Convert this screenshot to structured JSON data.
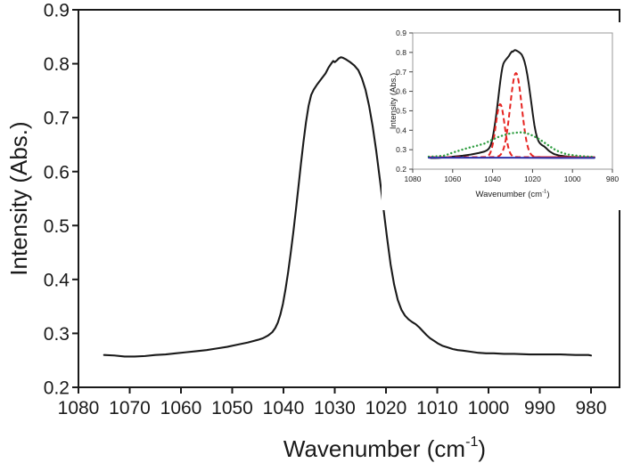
{
  "figure": {
    "background": "#ffffff",
    "description": "FTIR absorbance spectrum with peak-deconvolution inset"
  },
  "colors": {
    "spectrum": "#1a1a1a",
    "component_red": "#e62320",
    "component_green": "#2f9e41",
    "baseline_blue": "#2d2fa8",
    "axis": "#1a1a1a",
    "inset_frame": "#999999",
    "inset_axis": "#444444"
  },
  "chart_data": [
    {
      "id": "main",
      "type": "line",
      "title": "",
      "ylabel": "Intensity (Abs.)",
      "xlabel_prefix": "Wavenumber (cm",
      "xlabel_sup": "-1",
      "xlabel_suffix": ")",
      "x_reversed": true,
      "xlim": [
        1080,
        974.4
      ],
      "ylim": [
        0.2,
        0.9
      ],
      "x_ticks": [
        1080,
        1070,
        1060,
        1050,
        1040,
        1030,
        1020,
        1010,
        1000,
        990,
        980
      ],
      "y_ticks": [
        0.9,
        0.8,
        0.7,
        0.6,
        0.5,
        0.4,
        0.3,
        0.2
      ],
      "grid": false,
      "legend": "none",
      "series": [
        {
          "name": "measured-spectrum",
          "style": "solid",
          "color_key": "spectrum",
          "points": [
            [
              1075,
              0.26
            ],
            [
              1073,
              0.259
            ],
            [
              1071,
              0.257
            ],
            [
              1069,
              0.257
            ],
            [
              1067,
              0.258
            ],
            [
              1065,
              0.26
            ],
            [
              1063,
              0.261
            ],
            [
              1061,
              0.263
            ],
            [
              1059,
              0.265
            ],
            [
              1057,
              0.267
            ],
            [
              1055,
              0.269
            ],
            [
              1053,
              0.272
            ],
            [
              1051,
              0.275
            ],
            [
              1049,
              0.279
            ],
            [
              1047,
              0.283
            ],
            [
              1045,
              0.288
            ],
            [
              1044,
              0.291
            ],
            [
              1043,
              0.296
            ],
            [
              1042.2,
              0.302
            ],
            [
              1041.6,
              0.31
            ],
            [
              1041.1,
              0.32
            ],
            [
              1040.6,
              0.335
            ],
            [
              1040.1,
              0.355
            ],
            [
              1039.6,
              0.382
            ],
            [
              1039.1,
              0.413
            ],
            [
              1038.6,
              0.448
            ],
            [
              1038.1,
              0.486
            ],
            [
              1037.6,
              0.527
            ],
            [
              1037.1,
              0.57
            ],
            [
              1036.6,
              0.614
            ],
            [
              1036.1,
              0.655
            ],
            [
              1035.6,
              0.692
            ],
            [
              1035.1,
              0.722
            ],
            [
              1034.6,
              0.742
            ],
            [
              1034.1,
              0.752
            ],
            [
              1033.4,
              0.762
            ],
            [
              1032.6,
              0.772
            ],
            [
              1031.8,
              0.782
            ],
            [
              1031.2,
              0.793
            ],
            [
              1030.7,
              0.8
            ],
            [
              1030.3,
              0.805
            ],
            [
              1030.0,
              0.803
            ],
            [
              1029.6,
              0.806
            ],
            [
              1029.2,
              0.81
            ],
            [
              1028.8,
              0.812
            ],
            [
              1028.4,
              0.811
            ],
            [
              1027.8,
              0.808
            ],
            [
              1027.0,
              0.803
            ],
            [
              1026.2,
              0.797
            ],
            [
              1025.4,
              0.788
            ],
            [
              1024.7,
              0.773
            ],
            [
              1024.0,
              0.752
            ],
            [
              1023.3,
              0.722
            ],
            [
              1022.6,
              0.684
            ],
            [
              1021.9,
              0.638
            ],
            [
              1021.2,
              0.586
            ],
            [
              1020.5,
              0.532
            ],
            [
              1019.8,
              0.478
            ],
            [
              1019.1,
              0.428
            ],
            [
              1018.4,
              0.39
            ],
            [
              1017.7,
              0.362
            ],
            [
              1017.0,
              0.344
            ],
            [
              1016.3,
              0.333
            ],
            [
              1015.6,
              0.326
            ],
            [
              1014.9,
              0.321
            ],
            [
              1014.2,
              0.317
            ],
            [
              1013.5,
              0.311
            ],
            [
              1012.8,
              0.304
            ],
            [
              1012.1,
              0.297
            ],
            [
              1011.4,
              0.291
            ],
            [
              1010.6,
              0.286
            ],
            [
              1009.8,
              0.281
            ],
            [
              1009.0,
              0.277
            ],
            [
              1008.0,
              0.274
            ],
            [
              1007.0,
              0.271
            ],
            [
              1006.0,
              0.269
            ],
            [
              1005.0,
              0.268
            ],
            [
              1003.5,
              0.266
            ],
            [
              1002.0,
              0.264
            ],
            [
              1000.5,
              0.263
            ],
            [
              999.0,
              0.263
            ],
            [
              997.0,
              0.262
            ],
            [
              995.0,
              0.262
            ],
            [
              992.0,
              0.261
            ],
            [
              989.0,
              0.261
            ],
            [
              986.0,
              0.261
            ],
            [
              983.0,
              0.26
            ],
            [
              980.5,
              0.26
            ],
            [
              980.0,
              0.259
            ]
          ]
        }
      ]
    },
    {
      "id": "inset",
      "type": "line",
      "title": "",
      "ylabel": "Intensity (Abs.)",
      "xlabel_prefix": "Wavenumber (cm",
      "xlabel_sup": "-1",
      "xlabel_suffix": ")",
      "x_reversed": true,
      "xlim": [
        1080,
        980
      ],
      "ylim": [
        0.2,
        0.9
      ],
      "x_ticks": [
        1080,
        1060,
        1040,
        1020,
        1000,
        980
      ],
      "y_ticks": [
        0.9,
        0.8,
        0.7,
        0.6,
        0.5,
        0.4,
        0.3,
        0.2
      ],
      "grid": false,
      "legend": "none",
      "x_range_shown": [
        1072,
        989
      ],
      "series": [
        {
          "name": "measured-spectrum",
          "style": "solid",
          "color_key": "spectrum",
          "source": "main"
        },
        {
          "name": "deconvolved-component-1036",
          "style": "dashed",
          "color_key": "component_red",
          "shape": "gaussian",
          "center": 1036.2,
          "amplitude": 0.272,
          "fwhm": 5.2,
          "baseline": 0.262,
          "peak_intensity": 0.534
        },
        {
          "name": "deconvolved-component-1028",
          "style": "dashed",
          "color_key": "component_red",
          "shape": "gaussian",
          "center": 1028.3,
          "amplitude": 0.432,
          "fwhm": 6.8,
          "baseline": 0.262,
          "peak_intensity": 0.694
        },
        {
          "name": "deconvolved-broad-component",
          "style": "dotted",
          "color_key": "component_green",
          "points": [
            [
              1072,
              0.264
            ],
            [
              1068,
              0.266
            ],
            [
              1064,
              0.27
            ],
            [
              1060,
              0.285
            ],
            [
              1056,
              0.298
            ],
            [
              1052,
              0.31
            ],
            [
              1048,
              0.32
            ],
            [
              1044,
              0.332
            ],
            [
              1040,
              0.352
            ],
            [
              1037,
              0.366
            ],
            [
              1034,
              0.376
            ],
            [
              1031,
              0.384
            ],
            [
              1028,
              0.388
            ],
            [
              1026,
              0.389
            ],
            [
              1024,
              0.387
            ],
            [
              1022,
              0.381
            ],
            [
              1020,
              0.373
            ],
            [
              1018,
              0.362
            ],
            [
              1016,
              0.35
            ],
            [
              1014,
              0.336
            ],
            [
              1012,
              0.322
            ],
            [
              1010,
              0.308
            ],
            [
              1008,
              0.296
            ],
            [
              1006,
              0.287
            ],
            [
              1004,
              0.28
            ],
            [
              1002,
              0.275
            ],
            [
              1000,
              0.272
            ],
            [
              997,
              0.268
            ],
            [
              994,
              0.266
            ],
            [
              991,
              0.264
            ],
            [
              989,
              0.263
            ]
          ]
        },
        {
          "name": "baseline",
          "style": "solid",
          "color_key": "baseline_blue",
          "points": [
            [
              1072,
              0.259
            ],
            [
              1050,
              0.259
            ],
            [
              1030,
              0.259
            ],
            [
              1010,
              0.258
            ],
            [
              989,
              0.258
            ]
          ]
        }
      ]
    }
  ]
}
